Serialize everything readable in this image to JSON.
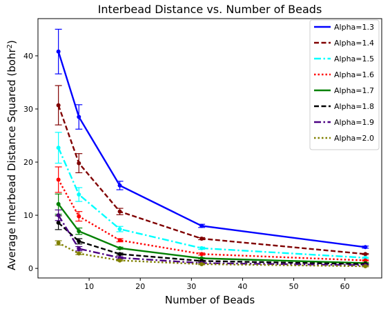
{
  "chart_data": {
    "type": "line",
    "title": "Interbead Distance vs. Number of Beads",
    "xlabel": "Number of Beads",
    "ylabel": "Average Interbead Distance Squared (bohr",
    "ylabel_sup": "2",
    "ylabel_close": ")",
    "xlim": [
      0,
      67.2
    ],
    "ylim": [
      -1.8,
      47
    ],
    "xticks": [
      10,
      20,
      30,
      40,
      50,
      60
    ],
    "yticks": [
      0,
      10,
      20,
      30,
      40
    ],
    "legend_position": "top-right",
    "grid": false,
    "x": [
      4,
      8,
      16,
      32,
      64
    ],
    "series": [
      {
        "name": "Alpha=1.3",
        "color": "#0000ff",
        "dash": "solid",
        "values": [
          40.8,
          28.5,
          15.6,
          8.0,
          4.0
        ],
        "errors": [
          4.2,
          2.3,
          0.8,
          0.3,
          0.2
        ]
      },
      {
        "name": "Alpha=1.4",
        "color": "#800000",
        "dash": "dashed",
        "values": [
          30.7,
          19.8,
          10.7,
          5.6,
          2.7
        ],
        "errors": [
          3.7,
          1.8,
          0.6,
          0.2,
          0.1
        ]
      },
      {
        "name": "Alpha=1.5",
        "color": "#00ffff",
        "dash": "dashdot",
        "values": [
          22.7,
          13.9,
          7.4,
          3.8,
          2.0
        ],
        "errors": [
          2.9,
          1.3,
          0.5,
          0.2,
          0.1
        ]
      },
      {
        "name": "Alpha=1.6",
        "color": "#ff0000",
        "dash": "dotted",
        "values": [
          16.7,
          9.8,
          5.3,
          2.7,
          1.5
        ],
        "errors": [
          2.4,
          0.9,
          0.3,
          0.2,
          0.1
        ]
      },
      {
        "name": "Alpha=1.7",
        "color": "#008000",
        "dash": "solid",
        "values": [
          12.1,
          7.0,
          3.8,
          1.9,
          1.0
        ],
        "errors": [
          1.9,
          0.6,
          0.2,
          0.1,
          0.1
        ]
      },
      {
        "name": "Alpha=1.8",
        "color": "#000000",
        "dash": "dashed",
        "values": [
          8.6,
          5.1,
          2.7,
          1.4,
          0.8
        ],
        "errors": [
          1.3,
          0.5,
          0.2,
          0.1,
          0.1
        ]
      },
      {
        "name": "Alpha=1.9",
        "color": "#4b0082",
        "dash": "dashdot",
        "values": [
          10.0,
          3.7,
          2.0,
          1.0,
          0.6
        ],
        "errors": [
          1.0,
          0.4,
          0.2,
          0.1,
          0.1
        ]
      },
      {
        "name": "Alpha=2.0",
        "color": "#808000",
        "dash": "dotted",
        "values": [
          4.8,
          2.8,
          1.5,
          0.8,
          0.4
        ],
        "errors": [
          0.4,
          0.2,
          0.1,
          0.1,
          0.1
        ]
      }
    ]
  }
}
